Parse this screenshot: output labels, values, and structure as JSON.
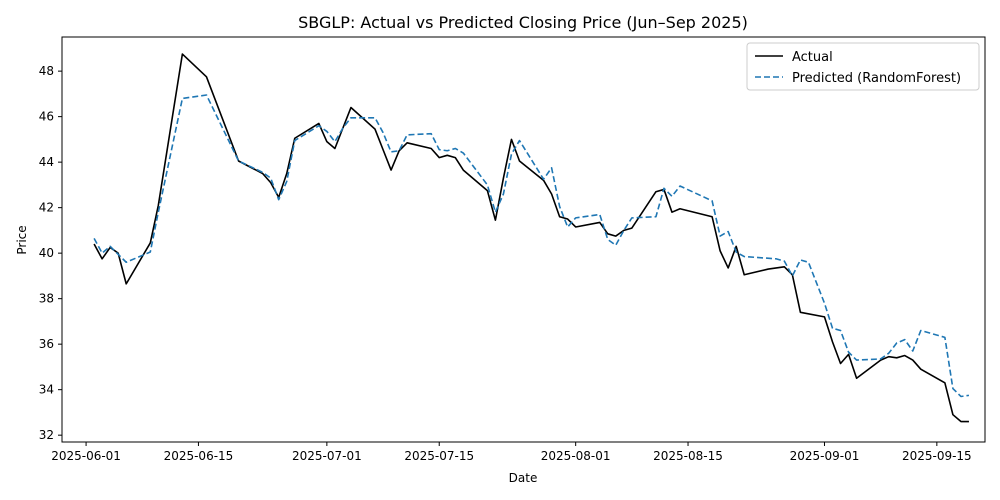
{
  "chart_data": {
    "type": "line",
    "title": "SBGLP: Actual vs Predicted Closing Price (Jun–Sep 2025)",
    "xlabel": "Date",
    "ylabel": "Price",
    "ylim": [
      31.7,
      49.5
    ],
    "xlim": [
      "2025-05-29",
      "2025-09-21"
    ],
    "grid": false,
    "legend_position": "top-right",
    "x_ticks": [
      "2025-06-01",
      "2025-06-15",
      "2025-07-01",
      "2025-07-15",
      "2025-08-01",
      "2025-08-15",
      "2025-09-01",
      "2025-09-15"
    ],
    "y_ticks": [
      32,
      34,
      36,
      38,
      40,
      42,
      44,
      46,
      48
    ],
    "series": [
      {
        "name": "Actual",
        "color": "#000000",
        "style": "solid",
        "points": [
          [
            "2025-06-02",
            40.4
          ],
          [
            "2025-06-03",
            39.75
          ],
          [
            "2025-06-04",
            40.25
          ],
          [
            "2025-06-05",
            40.0
          ],
          [
            "2025-06-06",
            38.65
          ],
          [
            "2025-06-09",
            40.45
          ],
          [
            "2025-06-10",
            42.1
          ],
          [
            "2025-06-13",
            48.75
          ],
          [
            "2025-06-16",
            47.75
          ],
          [
            "2025-06-20",
            44.05
          ],
          [
            "2025-06-23",
            43.5
          ],
          [
            "2025-06-24",
            43.1
          ],
          [
            "2025-06-25",
            42.45
          ],
          [
            "2025-06-26",
            43.5
          ],
          [
            "2025-06-27",
            45.05
          ],
          [
            "2025-06-30",
            45.7
          ],
          [
            "2025-07-01",
            44.9
          ],
          [
            "2025-07-02",
            44.6
          ],
          [
            "2025-07-03",
            45.5
          ],
          [
            "2025-07-04",
            46.4
          ],
          [
            "2025-07-07",
            45.45
          ],
          [
            "2025-07-08",
            44.55
          ],
          [
            "2025-07-09",
            43.65
          ],
          [
            "2025-07-10",
            44.5
          ],
          [
            "2025-07-11",
            44.85
          ],
          [
            "2025-07-14",
            44.6
          ],
          [
            "2025-07-15",
            44.2
          ],
          [
            "2025-07-16",
            44.3
          ],
          [
            "2025-07-17",
            44.2
          ],
          [
            "2025-07-18",
            43.65
          ],
          [
            "2025-07-21",
            42.75
          ],
          [
            "2025-07-22",
            41.45
          ],
          [
            "2025-07-23",
            43.3
          ],
          [
            "2025-07-24",
            45.0
          ],
          [
            "2025-07-25",
            44.05
          ],
          [
            "2025-07-28",
            43.2
          ],
          [
            "2025-07-29",
            42.6
          ],
          [
            "2025-07-30",
            41.6
          ],
          [
            "2025-07-31",
            41.5
          ],
          [
            "2025-08-01",
            41.15
          ],
          [
            "2025-08-04",
            41.35
          ],
          [
            "2025-08-05",
            40.85
          ],
          [
            "2025-08-06",
            40.75
          ],
          [
            "2025-08-07",
            41.0
          ],
          [
            "2025-08-08",
            41.1
          ],
          [
            "2025-08-11",
            42.7
          ],
          [
            "2025-08-12",
            42.8
          ],
          [
            "2025-08-13",
            41.8
          ],
          [
            "2025-08-14",
            41.95
          ],
          [
            "2025-08-18",
            41.6
          ],
          [
            "2025-08-19",
            40.1
          ],
          [
            "2025-08-20",
            39.35
          ],
          [
            "2025-08-21",
            40.3
          ],
          [
            "2025-08-22",
            39.05
          ],
          [
            "2025-08-25",
            39.3
          ],
          [
            "2025-08-26",
            39.35
          ],
          [
            "2025-08-27",
            39.4
          ],
          [
            "2025-08-28",
            39.05
          ],
          [
            "2025-08-29",
            37.4
          ],
          [
            "2025-09-01",
            37.2
          ],
          [
            "2025-09-02",
            36.1
          ],
          [
            "2025-09-03",
            35.15
          ],
          [
            "2025-09-04",
            35.55
          ],
          [
            "2025-09-05",
            34.5
          ],
          [
            "2025-09-08",
            35.3
          ],
          [
            "2025-09-09",
            35.45
          ],
          [
            "2025-09-10",
            35.4
          ],
          [
            "2025-09-11",
            35.5
          ],
          [
            "2025-09-12",
            35.3
          ],
          [
            "2025-09-13",
            34.9
          ],
          [
            "2025-09-16",
            34.3
          ],
          [
            "2025-09-17",
            32.9
          ],
          [
            "2025-09-18",
            32.6
          ],
          [
            "2025-09-19",
            32.6
          ]
        ]
      },
      {
        "name": "Predicted (RandomForest)",
        "color": "#1f77b4",
        "style": "dashed",
        "points": [
          [
            "2025-06-02",
            40.65
          ],
          [
            "2025-06-03",
            40.0
          ],
          [
            "2025-06-04",
            40.3
          ],
          [
            "2025-06-05",
            39.95
          ],
          [
            "2025-06-06",
            39.6
          ],
          [
            "2025-06-09",
            40.05
          ],
          [
            "2025-06-10",
            41.8
          ],
          [
            "2025-06-13",
            46.8
          ],
          [
            "2025-06-16",
            46.95
          ],
          [
            "2025-06-20",
            44.05
          ],
          [
            "2025-06-23",
            43.55
          ],
          [
            "2025-06-24",
            43.3
          ],
          [
            "2025-06-25",
            42.35
          ],
          [
            "2025-06-26",
            43.15
          ],
          [
            "2025-06-27",
            44.95
          ],
          [
            "2025-06-30",
            45.6
          ],
          [
            "2025-07-01",
            45.35
          ],
          [
            "2025-07-02",
            44.9
          ],
          [
            "2025-07-03",
            45.5
          ],
          [
            "2025-07-04",
            45.95
          ],
          [
            "2025-07-07",
            45.95
          ],
          [
            "2025-07-08",
            45.3
          ],
          [
            "2025-07-09",
            44.45
          ],
          [
            "2025-07-10",
            44.5
          ],
          [
            "2025-07-11",
            45.2
          ],
          [
            "2025-07-14",
            45.25
          ],
          [
            "2025-07-15",
            44.55
          ],
          [
            "2025-07-16",
            44.5
          ],
          [
            "2025-07-17",
            44.6
          ],
          [
            "2025-07-18",
            44.4
          ],
          [
            "2025-07-21",
            43.0
          ],
          [
            "2025-07-22",
            41.8
          ],
          [
            "2025-07-23",
            42.6
          ],
          [
            "2025-07-24",
            44.35
          ],
          [
            "2025-07-25",
            44.95
          ],
          [
            "2025-07-28",
            43.25
          ],
          [
            "2025-07-29",
            43.75
          ],
          [
            "2025-07-30",
            42.05
          ],
          [
            "2025-07-31",
            41.15
          ],
          [
            "2025-08-01",
            41.55
          ],
          [
            "2025-08-04",
            41.7
          ],
          [
            "2025-08-05",
            40.6
          ],
          [
            "2025-08-06",
            40.35
          ],
          [
            "2025-08-07",
            41.0
          ],
          [
            "2025-08-08",
            41.55
          ],
          [
            "2025-08-11",
            41.6
          ],
          [
            "2025-08-12",
            42.85
          ],
          [
            "2025-08-13",
            42.5
          ],
          [
            "2025-08-14",
            42.95
          ],
          [
            "2025-08-18",
            42.3
          ],
          [
            "2025-08-19",
            40.75
          ],
          [
            "2025-08-20",
            40.95
          ],
          [
            "2025-08-21",
            40.05
          ],
          [
            "2025-08-22",
            39.85
          ],
          [
            "2025-08-26",
            39.75
          ],
          [
            "2025-08-27",
            39.65
          ],
          [
            "2025-08-28",
            39.0
          ],
          [
            "2025-08-29",
            39.7
          ],
          [
            "2025-08-30",
            39.6
          ],
          [
            "2025-09-01",
            37.8
          ],
          [
            "2025-09-02",
            36.7
          ],
          [
            "2025-09-03",
            36.6
          ],
          [
            "2025-09-04",
            35.65
          ],
          [
            "2025-09-05",
            35.3
          ],
          [
            "2025-09-08",
            35.35
          ],
          [
            "2025-09-09",
            35.6
          ],
          [
            "2025-09-10",
            36.05
          ],
          [
            "2025-09-11",
            36.2
          ],
          [
            "2025-09-12",
            35.7
          ],
          [
            "2025-09-13",
            36.6
          ],
          [
            "2025-09-16",
            36.3
          ],
          [
            "2025-09-17",
            34.05
          ],
          [
            "2025-09-18",
            33.7
          ],
          [
            "2025-09-19",
            33.75
          ]
        ]
      }
    ]
  }
}
